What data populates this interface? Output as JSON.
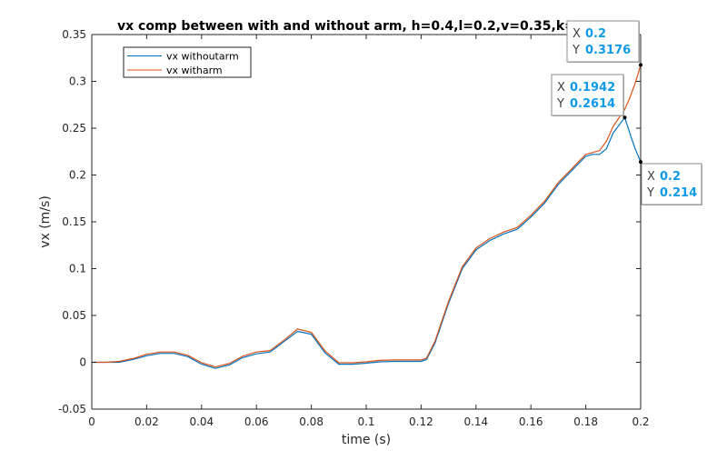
{
  "colors": {
    "without_arm": "#0072BD",
    "with_arm": "#D95319",
    "datatip_value": "#0E9AE8"
  },
  "chart_data": {
    "type": "line",
    "title": "vx comp between with and without arm, h=0.4,l=0.2,v=0.35,k=0.2",
    "xlabel": "time (s)",
    "ylabel": "vx (m/s)",
    "xlim": [
      0,
      0.2
    ],
    "ylim": [
      -0.05,
      0.35
    ],
    "xticks": [
      "0",
      "0.02",
      "0.04",
      "0.06",
      "0.08",
      "0.1",
      "0.12",
      "0.14",
      "0.16",
      "0.18",
      "0.2"
    ],
    "yticks": [
      "-0.05",
      "0",
      "0.05",
      "0.1",
      "0.15",
      "0.2",
      "0.25",
      "0.3",
      "0.35"
    ],
    "grid": false,
    "legend": "top-left",
    "series": [
      {
        "name": "vx withoutarm",
        "x": [
          0,
          0.005,
          0.01,
          0.015,
          0.02,
          0.025,
          0.03,
          0.035,
          0.04,
          0.045,
          0.05,
          0.055,
          0.06,
          0.065,
          0.07,
          0.075,
          0.08,
          0.085,
          0.09,
          0.095,
          0.1,
          0.105,
          0.11,
          0.115,
          0.12,
          0.122,
          0.125,
          0.13,
          0.135,
          0.14,
          0.145,
          0.15,
          0.155,
          0.16,
          0.165,
          0.17,
          0.175,
          0.18,
          0.1825,
          0.185,
          0.1875,
          0.19,
          0.1942,
          0.196,
          0.198,
          0.2
        ],
        "y": [
          0,
          0,
          0,
          0.003,
          0.007,
          0.0095,
          0.0095,
          0.006,
          -0.002,
          -0.0065,
          -0.003,
          0.005,
          0.009,
          0.011,
          0.022,
          0.033,
          0.03,
          0.01,
          -0.002,
          -0.002,
          -0.001,
          0.0005,
          0.001,
          0.001,
          0.001,
          0.003,
          0.02,
          0.063,
          0.1,
          0.12,
          0.13,
          0.137,
          0.142,
          0.155,
          0.17,
          0.19,
          0.205,
          0.22,
          0.222,
          0.222,
          0.228,
          0.245,
          0.2614,
          0.245,
          0.228,
          0.214
        ]
      },
      {
        "name": "vx witharm",
        "x": [
          0,
          0.005,
          0.01,
          0.015,
          0.02,
          0.025,
          0.03,
          0.035,
          0.04,
          0.045,
          0.05,
          0.055,
          0.06,
          0.065,
          0.07,
          0.075,
          0.08,
          0.085,
          0.09,
          0.095,
          0.1,
          0.105,
          0.11,
          0.115,
          0.12,
          0.122,
          0.125,
          0.13,
          0.135,
          0.14,
          0.145,
          0.15,
          0.155,
          0.16,
          0.165,
          0.17,
          0.175,
          0.18,
          0.1825,
          0.185,
          0.1875,
          0.19,
          0.1942,
          0.196,
          0.198,
          0.2
        ],
        "y": [
          0,
          0,
          0.001,
          0.004,
          0.0085,
          0.011,
          0.011,
          0.0075,
          -0.0005,
          -0.005,
          -0.0015,
          0.0065,
          0.011,
          0.0125,
          0.0235,
          0.0355,
          0.032,
          0.012,
          -0.0005,
          -0.0005,
          0.0005,
          0.002,
          0.0025,
          0.0025,
          0.0025,
          0.0045,
          0.022,
          0.065,
          0.102,
          0.122,
          0.132,
          0.139,
          0.144,
          0.157,
          0.172,
          0.192,
          0.207,
          0.222,
          0.224,
          0.226,
          0.236,
          0.252,
          0.27,
          0.282,
          0.298,
          0.3176
        ]
      }
    ],
    "datatips": [
      {
        "series": "vx witharm",
        "x_label": "X",
        "x_value": "0.2",
        "y_label": "Y",
        "y_value": "0.3176",
        "x": 0.2,
        "y": 0.3176,
        "anchor": "top-right"
      },
      {
        "series": "vx withoutarm",
        "x_label": "X",
        "x_value": "0.1942",
        "y_label": "Y",
        "y_value": "0.2614",
        "x": 0.1942,
        "y": 0.2614,
        "anchor": "peak"
      },
      {
        "series": "vx withoutarm",
        "x_label": "X",
        "x_value": "0.2",
        "y_label": "Y",
        "y_value": "0.214",
        "x": 0.2,
        "y": 0.214,
        "anchor": "right-end"
      }
    ]
  }
}
